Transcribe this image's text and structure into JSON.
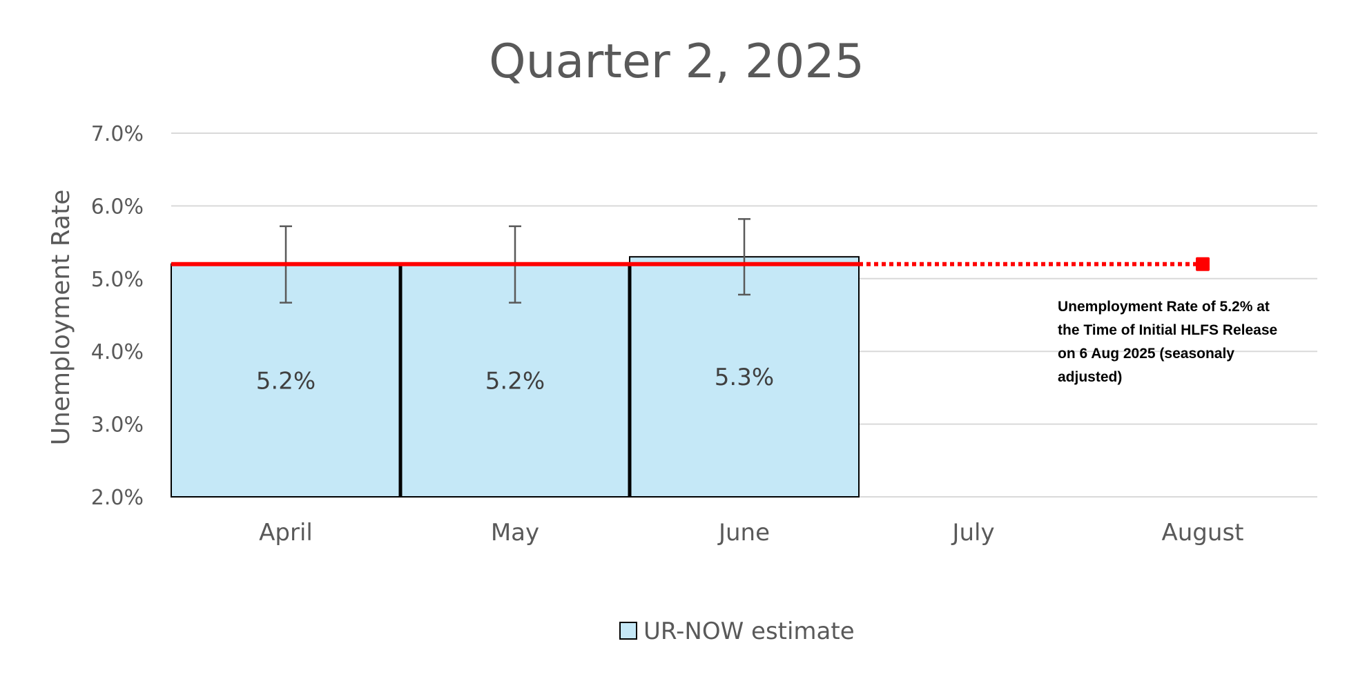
{
  "chart_data": {
    "type": "bar",
    "title": "Quarter 2, 2025",
    "ylabel": "Unemployment Rate",
    "xlabel": "",
    "categories": [
      "April",
      "May",
      "June",
      "July",
      "August"
    ],
    "ylim": [
      0.02,
      0.07
    ],
    "yticks": [
      {
        "value": 0.02,
        "label": "2.0%"
      },
      {
        "value": 0.03,
        "label": "3.0%"
      },
      {
        "value": 0.04,
        "label": "4.0%"
      },
      {
        "value": 0.05,
        "label": "5.0%"
      },
      {
        "value": 0.06,
        "label": "6.0%"
      },
      {
        "value": 0.07,
        "label": "7.0%"
      }
    ],
    "grid": true,
    "series": [
      {
        "name": "UR-NOW estimate",
        "values": [
          0.052,
          0.052,
          0.053,
          null,
          null
        ],
        "data_labels": [
          "5.2%",
          "5.2%",
          "5.3%",
          "",
          ""
        ],
        "error_low": [
          0.0467,
          0.0467,
          0.0478,
          null,
          null
        ],
        "error_high": [
          0.0572,
          0.0572,
          0.0582,
          null,
          null
        ],
        "color": "#c5e8f7"
      }
    ],
    "reference_line": {
      "value": 0.052,
      "solid_until": "June",
      "dotted_until": "August",
      "color": "#ff0000"
    },
    "annotation": [
      "Unemployment Rate of 5.2% at",
      "the Time of Initial HLFS Release",
      "on 6 Aug 2025 (seasonaly",
      "adjusted)"
    ],
    "legend": {
      "position": "bottom",
      "entries": [
        {
          "label": "UR-NOW estimate",
          "color": "#c5e8f7"
        }
      ]
    }
  }
}
